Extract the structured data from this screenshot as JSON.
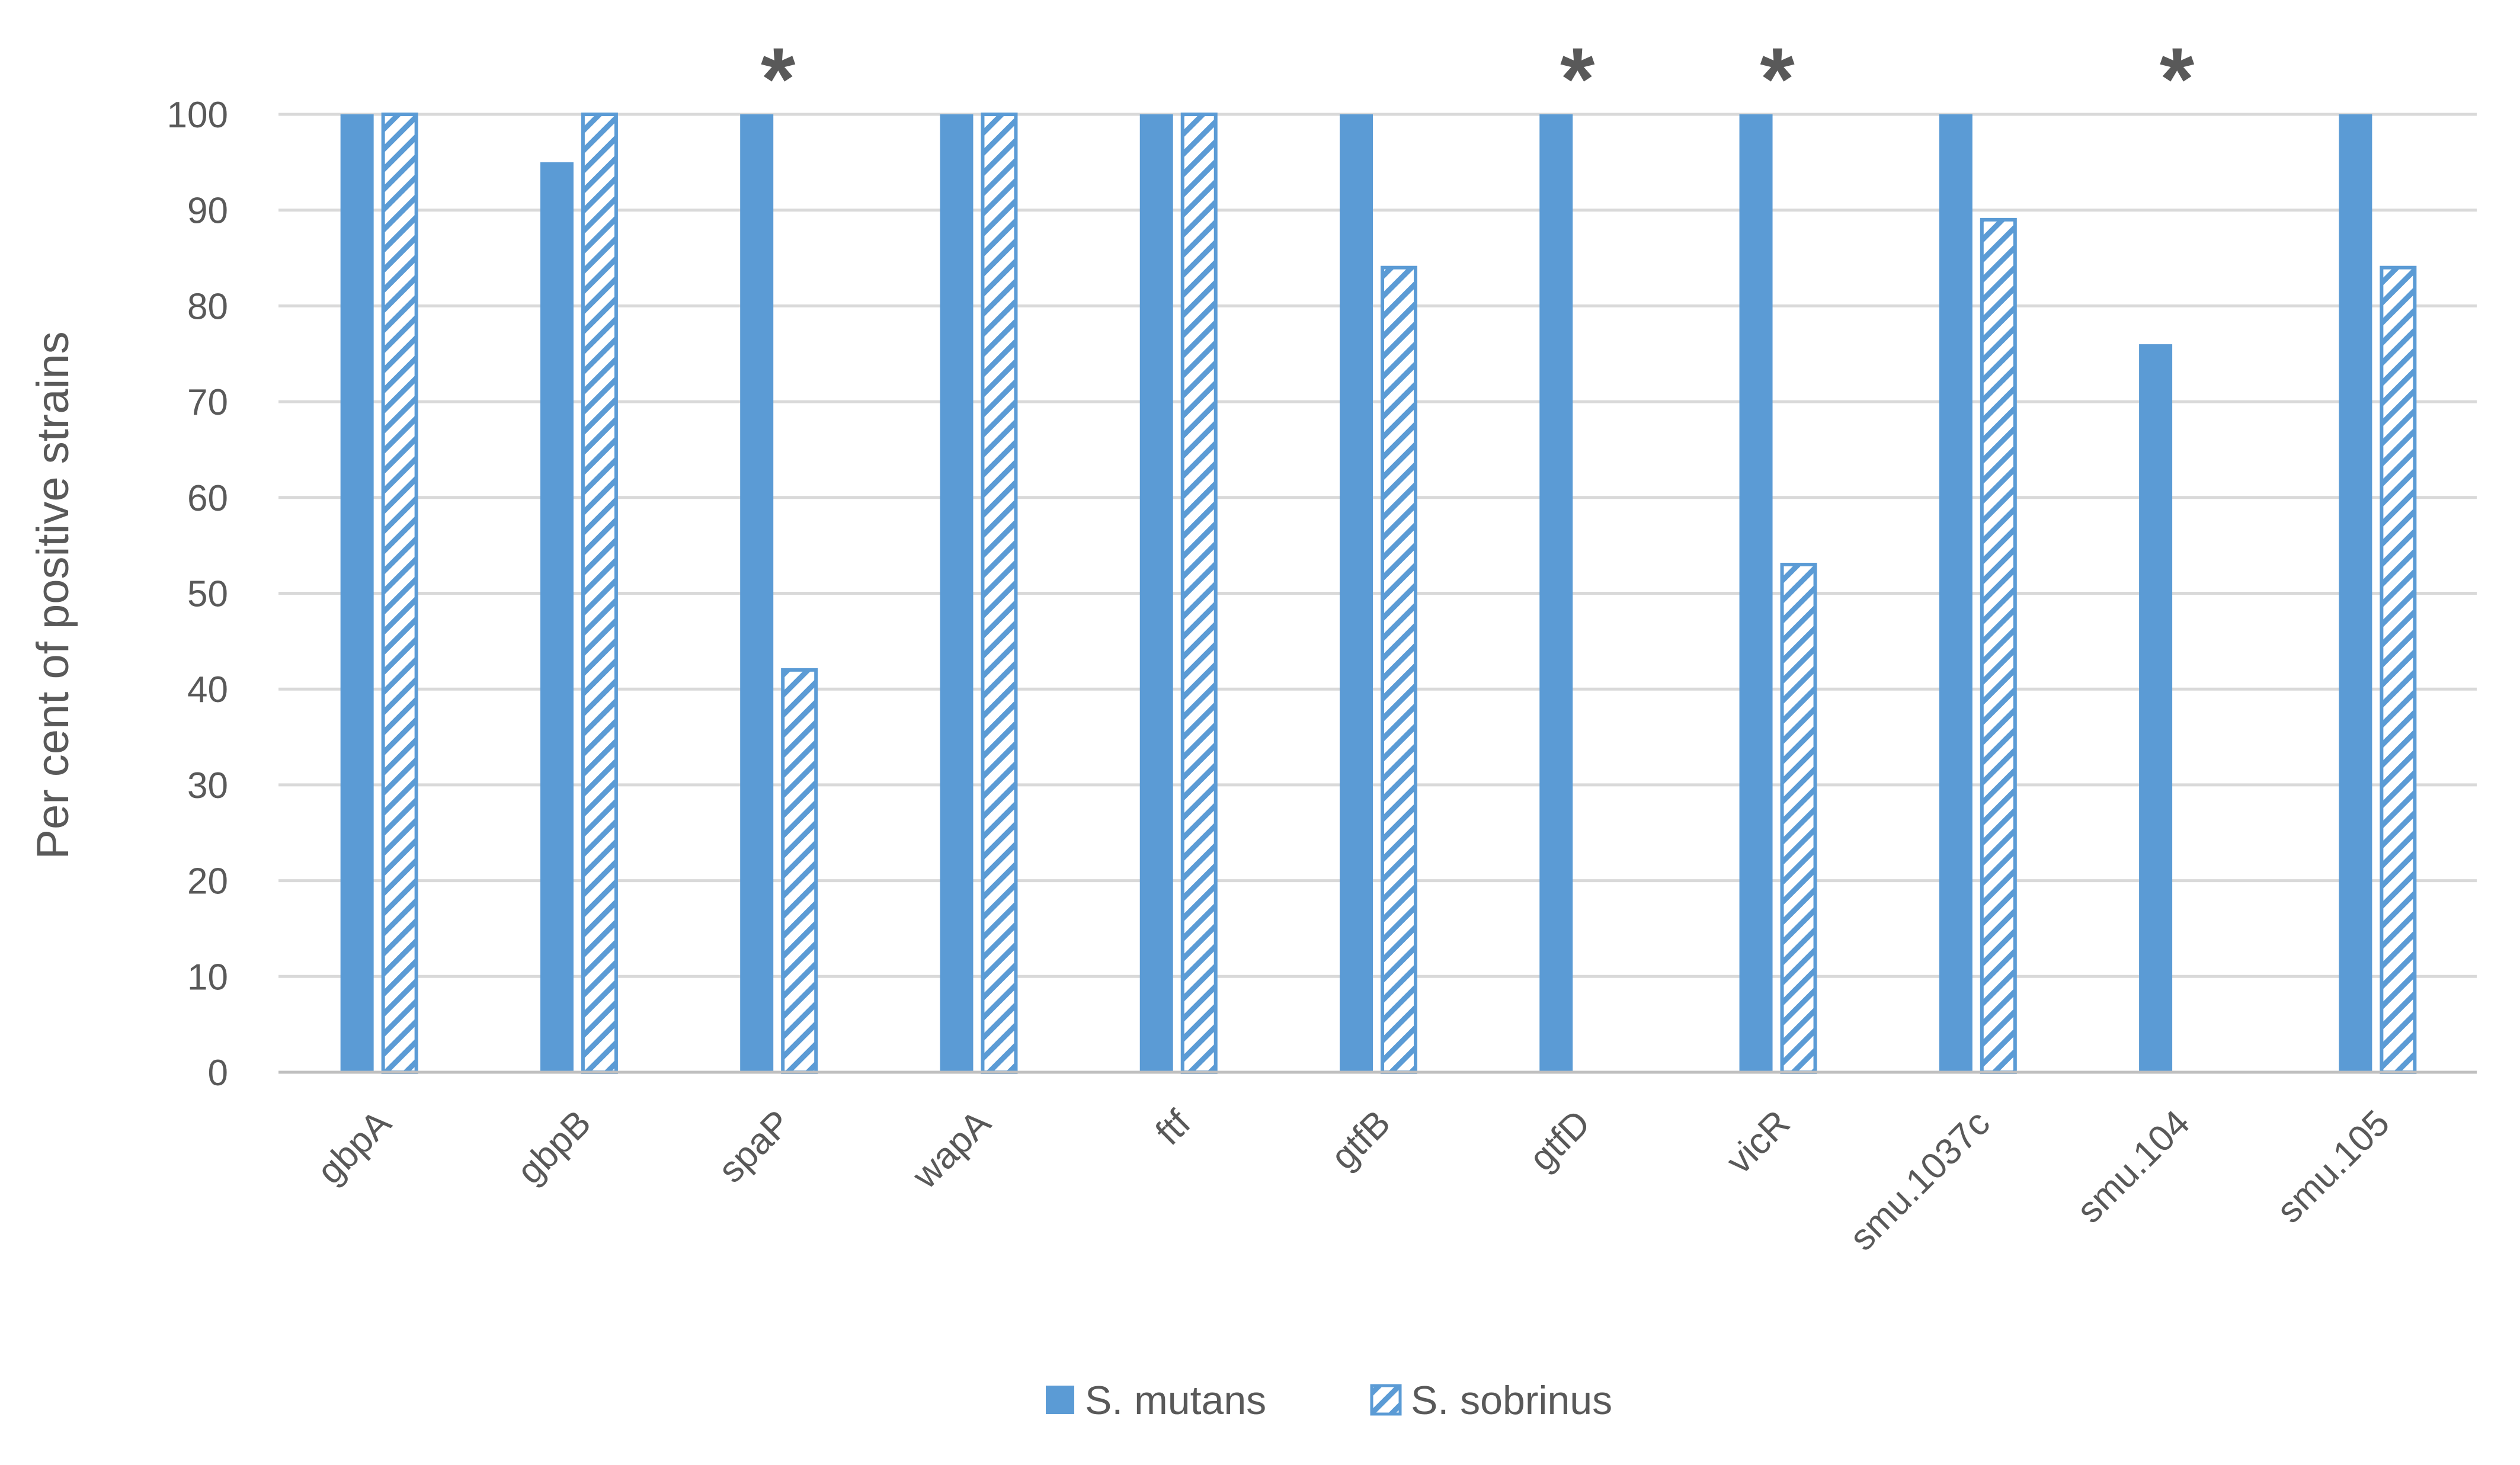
{
  "chart_data": {
    "type": "bar",
    "categories": [
      "gbpA",
      "gbpB",
      "spaP",
      "wapA",
      "ftf",
      "gtfB",
      "gtfD",
      "vicR",
      "smu.1037c",
      "smu.104",
      "smu.105"
    ],
    "series": [
      {
        "name": "S. mutans",
        "values": [
          100,
          95,
          100,
          100,
          100,
          100,
          100,
          100,
          100,
          76,
          100
        ],
        "style": "solid"
      },
      {
        "name": "S. sobrinus",
        "values": [
          100,
          100,
          42,
          100,
          100,
          84,
          0,
          53,
          89,
          0,
          84
        ],
        "style": "hatched"
      }
    ],
    "title": "",
    "xlabel": "",
    "ylabel": "Per cent of positive strains",
    "ylim": [
      0,
      100
    ],
    "yticks": [
      0,
      10,
      20,
      30,
      40,
      50,
      60,
      70,
      80,
      90,
      100
    ],
    "grid": true,
    "legend_position": "bottom",
    "annotations": [
      {
        "category": "spaP",
        "text": "*"
      },
      {
        "category": "gtfD",
        "text": "*"
      },
      {
        "category": "vicR",
        "text": "*"
      },
      {
        "category": "smu.104",
        "text": "*"
      }
    ],
    "colors": {
      "bar": "#5b9bd5",
      "grid": "#d9d9d9",
      "axis": "#bfbfbf",
      "text": "#595959"
    }
  }
}
